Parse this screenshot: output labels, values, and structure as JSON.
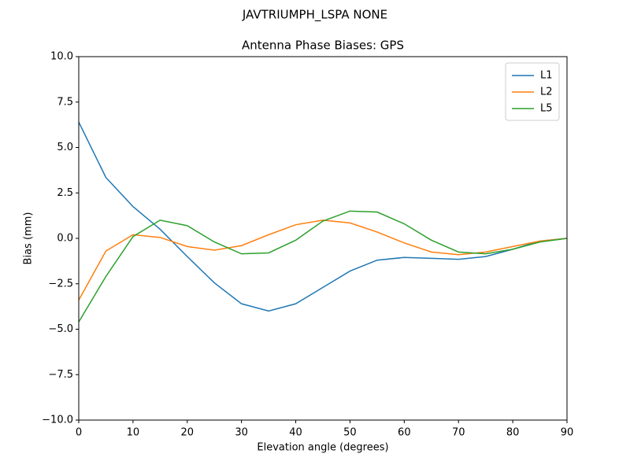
{
  "chart_data": {
    "type": "line",
    "suptitle": "JAVTRIUMPH_LSPA NONE",
    "title": "Antenna Phase Biases: GPS",
    "x_label": "Elevation angle (degrees)",
    "y_label": "Bias (mm)",
    "x": [
      0,
      5,
      10,
      15,
      20,
      25,
      30,
      35,
      40,
      45,
      50,
      55,
      60,
      65,
      70,
      75,
      80,
      85,
      90
    ],
    "series": [
      {
        "name": "L1",
        "color": "#1f77b4",
        "values": [
          6.4,
          3.35,
          1.75,
          0.5,
          -1.0,
          -2.45,
          -3.6,
          -4.0,
          -3.6,
          -2.7,
          -1.8,
          -1.2,
          -1.05,
          -1.1,
          -1.15,
          -1.0,
          -0.6,
          -0.15,
          0
        ]
      },
      {
        "name": "L2",
        "color": "#ff7f0e",
        "values": [
          -3.4,
          -0.7,
          0.2,
          0.05,
          -0.45,
          -0.65,
          -0.4,
          0.2,
          0.75,
          1.0,
          0.85,
          0.35,
          -0.25,
          -0.75,
          -0.9,
          -0.75,
          -0.45,
          -0.15,
          0
        ]
      },
      {
        "name": "L5",
        "color": "#2ca02c",
        "values": [
          -4.6,
          -2.1,
          0.1,
          1.0,
          0.7,
          -0.2,
          -0.85,
          -0.8,
          -0.1,
          0.95,
          1.5,
          1.45,
          0.8,
          -0.1,
          -0.75,
          -0.85,
          -0.6,
          -0.2,
          0
        ]
      }
    ],
    "xlim": [
      0,
      90
    ],
    "ylim": [
      -10,
      10
    ],
    "xticks": [
      0,
      10,
      20,
      30,
      40,
      50,
      60,
      70,
      80,
      90
    ],
    "yticks": [
      {
        "value": -10,
        "label": "−10.0"
      },
      {
        "value": -7.5,
        "label": "−7.5"
      },
      {
        "value": -5,
        "label": "−5.0"
      },
      {
        "value": -2.5,
        "label": "−2.5"
      },
      {
        "value": 0,
        "label": "0.0"
      },
      {
        "value": 2.5,
        "label": "2.5"
      },
      {
        "value": 5,
        "label": "5.0"
      },
      {
        "value": 7.5,
        "label": "7.5"
      },
      {
        "value": 10,
        "label": "10.0"
      }
    ],
    "grid": false,
    "legend": "upper-right"
  }
}
